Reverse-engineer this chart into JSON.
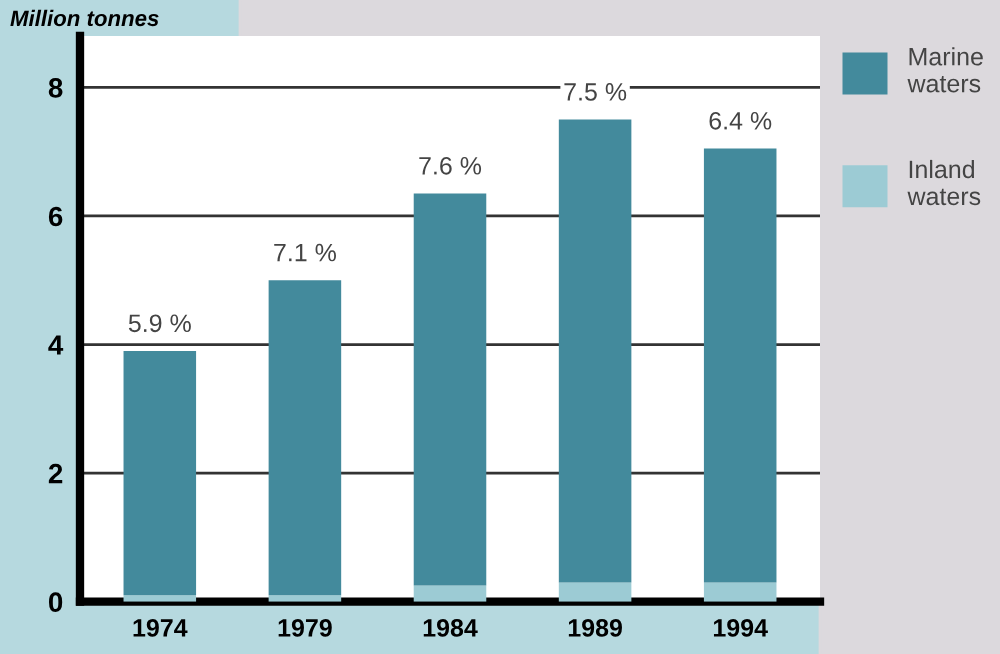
{
  "chart_data": {
    "type": "bar",
    "ylabel": "Million tonnes",
    "categories": [
      "1974",
      "1979",
      "1984",
      "1989",
      "1994"
    ],
    "stacked": true,
    "series": [
      {
        "name": "Inland waters",
        "color": "#9ccbd4",
        "values": [
          0.1,
          0.1,
          0.25,
          0.3,
          0.3
        ]
      },
      {
        "name": "Marine waters",
        "color": "#438a9c",
        "values": [
          3.8,
          4.9,
          6.1,
          7.2,
          6.75
        ]
      }
    ],
    "annotations": [
      {
        "text": "5.9 %",
        "x": "1974",
        "y": 3.9
      },
      {
        "text": "7.1 %",
        "x": "1979",
        "y": 5.0
      },
      {
        "text": "7.6 %",
        "x": "1984",
        "y": 6.35
      },
      {
        "text": "7.5 %",
        "x": "1989",
        "y": 7.5
      },
      {
        "text": "6.4 %",
        "x": "1994",
        "y": 7.05
      }
    ],
    "ylim": [
      0,
      8.8
    ],
    "yticks": [
      0,
      2,
      4,
      6,
      8
    ],
    "grid": "y",
    "legend": "right"
  }
}
